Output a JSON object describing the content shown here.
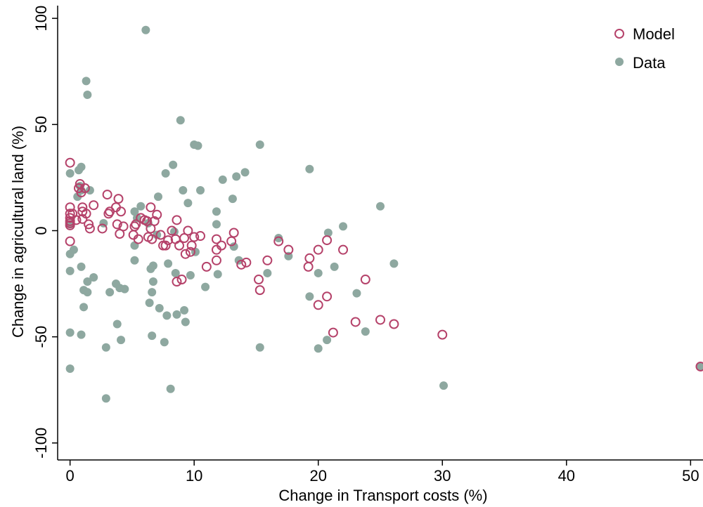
{
  "chart_data": {
    "type": "scatter",
    "xlabel": "Change in Transport costs (%)",
    "ylabel": "Change in agricultural land (%)",
    "xlim": [
      -1,
      51
    ],
    "ylim": [
      -108,
      106
    ],
    "xticks": [
      0,
      10,
      20,
      30,
      40,
      50
    ],
    "xtick_labels": [
      "0",
      "10",
      "20",
      "30",
      "40",
      "50"
    ],
    "yticks": [
      -100,
      -50,
      0,
      50,
      100
    ],
    "ytick_labels": [
      "-100",
      "-50",
      "0",
      "50",
      "100"
    ],
    "grid": false,
    "legend_position": "top-right",
    "colors": {
      "model": "#b5426a",
      "data": "#8ea8a0"
    },
    "series": [
      {
        "name": "Model",
        "marker": "hollow-circle",
        "points": [
          [
            0,
            32
          ],
          [
            0,
            11
          ],
          [
            0,
            8
          ],
          [
            0,
            6
          ],
          [
            0,
            4.5
          ],
          [
            0,
            3.5
          ],
          [
            0,
            2.5
          ],
          [
            0,
            -5
          ],
          [
            0.2,
            8
          ],
          [
            0.5,
            5
          ],
          [
            0.7,
            20
          ],
          [
            0.8,
            22
          ],
          [
            0.9,
            18
          ],
          [
            1,
            11
          ],
          [
            1,
            9
          ],
          [
            1,
            5.5
          ],
          [
            1.2,
            20
          ],
          [
            1.3,
            8
          ],
          [
            1.5,
            3
          ],
          [
            1.6,
            1
          ],
          [
            1.9,
            12
          ],
          [
            2.6,
            1
          ],
          [
            3,
            17
          ],
          [
            3.1,
            8
          ],
          [
            3.2,
            9
          ],
          [
            3.7,
            11
          ],
          [
            3.8,
            3
          ],
          [
            3.9,
            15
          ],
          [
            4,
            -1.5
          ],
          [
            4.1,
            9
          ],
          [
            4.3,
            2
          ],
          [
            5.1,
            -2
          ],
          [
            5.2,
            2
          ],
          [
            5.3,
            3
          ],
          [
            5.5,
            -4
          ],
          [
            5.7,
            6
          ],
          [
            6,
            5
          ],
          [
            6.2,
            4.5
          ],
          [
            6.3,
            -3
          ],
          [
            6.5,
            11
          ],
          [
            6.5,
            1
          ],
          [
            6.6,
            -4
          ],
          [
            6.8,
            4.5
          ],
          [
            7,
            7.5
          ],
          [
            7.3,
            -2
          ],
          [
            7.5,
            -7
          ],
          [
            7.7,
            -7
          ],
          [
            7.9,
            -4.5
          ],
          [
            8.2,
            0
          ],
          [
            8.5,
            -4
          ],
          [
            8.6,
            5
          ],
          [
            8.6,
            -24
          ],
          [
            8.8,
            -7
          ],
          [
            9,
            -23
          ],
          [
            9.2,
            -3.5
          ],
          [
            9.3,
            -11
          ],
          [
            9.5,
            0
          ],
          [
            9.7,
            -10
          ],
          [
            9.8,
            -7
          ],
          [
            10,
            -3
          ],
          [
            10.5,
            -2.5
          ],
          [
            11,
            -17
          ],
          [
            11.8,
            -4
          ],
          [
            11.8,
            -9
          ],
          [
            11.8,
            -14
          ],
          [
            12.2,
            -7
          ],
          [
            13,
            -5
          ],
          [
            13.2,
            -1
          ],
          [
            13.8,
            -16
          ],
          [
            14.2,
            -15
          ],
          [
            15.2,
            -23
          ],
          [
            15.3,
            -28
          ],
          [
            15.9,
            -14
          ],
          [
            16.8,
            -5
          ],
          [
            17.6,
            -9
          ],
          [
            19.2,
            -17
          ],
          [
            19.3,
            -13
          ],
          [
            20,
            -9
          ],
          [
            20,
            -35
          ],
          [
            20.7,
            -31
          ],
          [
            20.7,
            -4.5
          ],
          [
            21.2,
            -48
          ],
          [
            22,
            -9
          ],
          [
            23,
            -43
          ],
          [
            23.8,
            -23
          ],
          [
            25,
            -42
          ],
          [
            26.1,
            -44
          ],
          [
            30,
            -49
          ],
          [
            50.8,
            -64
          ]
        ]
      },
      {
        "name": "Data",
        "marker": "filled-circle",
        "points": [
          [
            0,
            27
          ],
          [
            0,
            3
          ],
          [
            0,
            -11
          ],
          [
            0,
            -19
          ],
          [
            0,
            -48
          ],
          [
            0,
            -65
          ],
          [
            0.3,
            -9
          ],
          [
            0.6,
            16
          ],
          [
            0.7,
            28.5
          ],
          [
            0.8,
            21
          ],
          [
            0.9,
            30
          ],
          [
            0.9,
            19
          ],
          [
            0.9,
            -17
          ],
          [
            0.9,
            -49
          ],
          [
            1.1,
            -28
          ],
          [
            1.1,
            -36
          ],
          [
            1.3,
            70.5
          ],
          [
            1.4,
            64
          ],
          [
            1.4,
            -24
          ],
          [
            1.4,
            -29
          ],
          [
            1.6,
            19
          ],
          [
            1.9,
            -22
          ],
          [
            2.7,
            3.5
          ],
          [
            2.9,
            -55
          ],
          [
            2.9,
            -79
          ],
          [
            3.2,
            -29
          ],
          [
            3.7,
            -25
          ],
          [
            3.8,
            -44
          ],
          [
            4,
            -27
          ],
          [
            4.1,
            -51.5
          ],
          [
            4.4,
            -27.5
          ],
          [
            5.2,
            9
          ],
          [
            5.2,
            -7
          ],
          [
            5.2,
            -14
          ],
          [
            5.4,
            6
          ],
          [
            5.7,
            11.5
          ],
          [
            6.1,
            94.5
          ],
          [
            6.3,
            3.5
          ],
          [
            6.4,
            -34
          ],
          [
            6.5,
            -18
          ],
          [
            6.6,
            -29
          ],
          [
            6.6,
            -49.5
          ],
          [
            6.7,
            -16.5
          ],
          [
            6.7,
            -24
          ],
          [
            7,
            -2
          ],
          [
            7.1,
            16
          ],
          [
            7.2,
            -36.5
          ],
          [
            7.6,
            -52.5
          ],
          [
            7.7,
            27
          ],
          [
            7.8,
            -40
          ],
          [
            7.9,
            -15.5
          ],
          [
            8.1,
            -74.5
          ],
          [
            8.3,
            31
          ],
          [
            8.4,
            -0.5
          ],
          [
            8.5,
            -20
          ],
          [
            8.6,
            -39.5
          ],
          [
            8.9,
            52
          ],
          [
            9.1,
            19
          ],
          [
            9.2,
            -37.5
          ],
          [
            9.3,
            -43
          ],
          [
            9.5,
            13
          ],
          [
            9.7,
            -21
          ],
          [
            10,
            40.5
          ],
          [
            10.1,
            -10
          ],
          [
            10.3,
            40
          ],
          [
            10.5,
            19
          ],
          [
            10.9,
            -26.5
          ],
          [
            11.8,
            9
          ],
          [
            11.8,
            3
          ],
          [
            11.9,
            -20.5
          ],
          [
            12.3,
            24
          ],
          [
            13.1,
            15
          ],
          [
            13.2,
            -7.5
          ],
          [
            13.4,
            25.5
          ],
          [
            13.6,
            -14
          ],
          [
            14.1,
            27.5
          ],
          [
            15.3,
            40.5
          ],
          [
            15.3,
            -55
          ],
          [
            15.9,
            -20
          ],
          [
            16.8,
            -3.5
          ],
          [
            17.6,
            -12
          ],
          [
            19.3,
            29
          ],
          [
            19.3,
            -31
          ],
          [
            20,
            -20
          ],
          [
            20,
            -55.5
          ],
          [
            20.7,
            -51.5
          ],
          [
            20.8,
            -1
          ],
          [
            21.3,
            -17
          ],
          [
            22,
            2
          ],
          [
            23.1,
            -29.5
          ],
          [
            23.8,
            -47.5
          ],
          [
            25,
            11.5
          ],
          [
            26.1,
            -15.5
          ],
          [
            30.1,
            -73
          ],
          [
            50.8,
            -64
          ]
        ]
      }
    ]
  }
}
